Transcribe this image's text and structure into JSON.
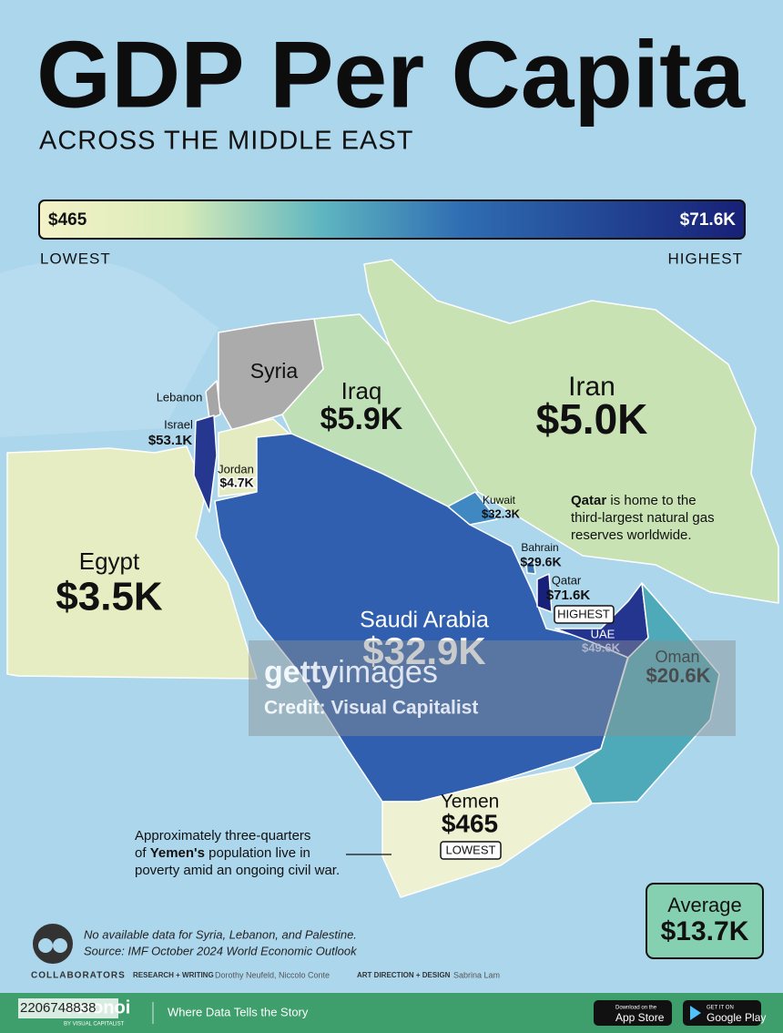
{
  "title": "GDP Per Capita",
  "subtitle": "ACROSS THE MIDDLE EAST",
  "legend": {
    "min": "$465",
    "max": "$71.6K",
    "low": "LOWEST",
    "high": "HIGHEST"
  },
  "countries": [
    {
      "name": "Iran",
      "value": "$5.0K",
      "color": "#c8e2b4"
    },
    {
      "name": "Iraq",
      "value": "$5.9K",
      "color": "#bfe0b6"
    },
    {
      "name": "Saudi Arabia",
      "value": "$32.9K",
      "color": "#2f5fae"
    },
    {
      "name": "Egypt",
      "value": "$3.5K",
      "color": "#e6edc2"
    },
    {
      "name": "Yemen",
      "value": "$465",
      "tag": "LOWEST",
      "color": "#eff1d3"
    },
    {
      "name": "Oman",
      "value": "$20.6K",
      "color": "#4eaab9"
    },
    {
      "name": "UAE",
      "value": "$49.6K",
      "color": "#23358f"
    },
    {
      "name": "Qatar",
      "value": "$71.6K",
      "tag": "HIGHEST",
      "color": "#17217a"
    },
    {
      "name": "Bahrain",
      "value": "$29.6K",
      "color": "#3a78b8"
    },
    {
      "name": "Kuwait",
      "value": "$32.3K",
      "color": "#3f88c2"
    },
    {
      "name": "Jordan",
      "value": "$4.7K",
      "color": "#e4ebc0"
    },
    {
      "name": "Israel",
      "value": "$53.1K",
      "color": "#25378f"
    },
    {
      "name": "Syria",
      "color": "#ababab"
    },
    {
      "name": "Lebanon",
      "color": "#a6a6a6"
    }
  ],
  "qatar_note": [
    [
      {
        "text": "Qatar",
        "bold": true
      },
      {
        "text": " is home to the"
      }
    ],
    [
      {
        "text": "third-largest natural gas"
      }
    ],
    [
      {
        "text": "reserves worldwide."
      }
    ]
  ],
  "yemen_note": [
    [
      {
        "text": "Approximately three-quarters"
      }
    ],
    [
      {
        "text": "of "
      },
      {
        "text": "Yemen's",
        "bold": true
      },
      {
        "text": " population live in"
      }
    ],
    [
      {
        "text": "poverty amid an ongoing civil war."
      }
    ]
  ],
  "average": {
    "label": "Average",
    "value": "$13.7K"
  },
  "sources": [
    "No available data for Syria, Lebanon, and Palestine.",
    "Source: IMF October 2024 World Economic Outlook"
  ],
  "credits": {
    "heading": "COLLABORATORS",
    "role1": "RESEARCH + WRITING",
    "names1": "Dorothy Neufeld, Niccolo Conte",
    "role2": "ART DIRECTION + DESIGN",
    "names2": "Sabrina Lam"
  },
  "footer": {
    "brand": "voronoi",
    "by": "BY VISUAL CAPITALIST",
    "tagline": "Where Data Tells the Story",
    "apple_small": "Download on the",
    "apple": "App Store",
    "google_small": "GET IT ON",
    "google": "Google Play"
  },
  "watermark": {
    "logo_bold": "getty",
    "logo": "images",
    "credit": "Credit: Visual Capitalist",
    "id": "2206748838"
  }
}
